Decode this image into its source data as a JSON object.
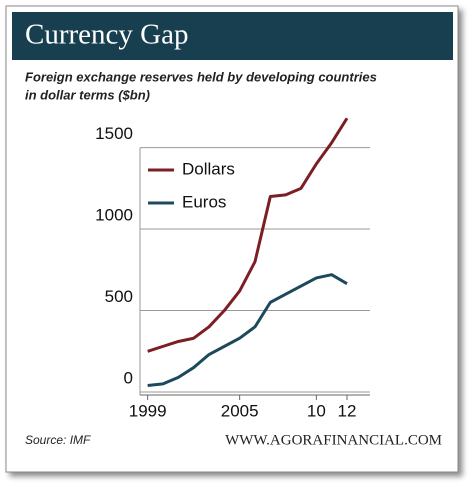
{
  "chart_data": {
    "type": "line",
    "title": "Currency Gap",
    "subtitle": [
      "Foreign exchange reserves held by developing countries",
      "in dollar terms ($bn)"
    ],
    "source": "Source: IMF",
    "credit": "WWW.AGORAFINANCIAL.COM",
    "x": [
      1999,
      2000,
      2001,
      2002,
      2003,
      2004,
      2005,
      2006,
      2007,
      2008,
      2009,
      2010,
      2011,
      2012
    ],
    "series": [
      {
        "name": "Dollars",
        "color": "#7b1f24",
        "values": [
          250,
          280,
          310,
          330,
          400,
          500,
          620,
          800,
          1200,
          1210,
          1250,
          1400,
          1530,
          1680
        ]
      },
      {
        "name": "Euros",
        "color": "#1c4a5c",
        "values": [
          40,
          50,
          90,
          150,
          230,
          280,
          330,
          400,
          550,
          600,
          650,
          700,
          720,
          665
        ]
      }
    ],
    "xlim": [
      1998.5,
      2013.5
    ],
    "xticks": [
      1999,
      2005,
      {
        "value": 2010,
        "label": "10"
      },
      {
        "value": 2012,
        "label": "12"
      }
    ],
    "ylim": [
      0,
      1700
    ],
    "yticks": [
      0,
      500,
      1000,
      1500
    ],
    "grid": true,
    "legend": "upper left"
  }
}
